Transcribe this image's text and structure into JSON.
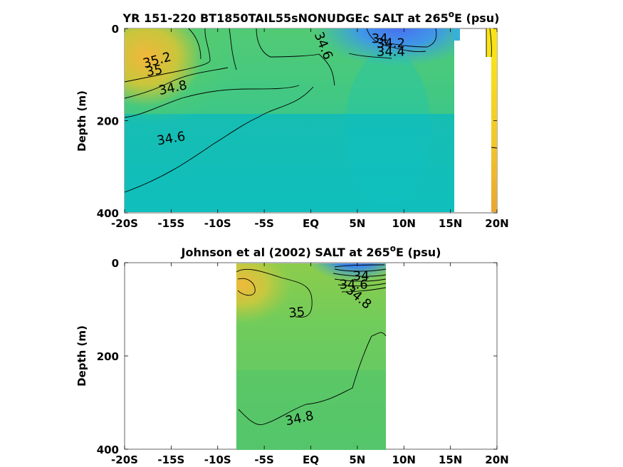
{
  "chart_data": [
    {
      "type": "heatmap",
      "title": "YR 151-220 BT1850TAIL55sNONUDGEc SALT at 265",
      "title_superscript": "o",
      "title_suffix": "E (psu)",
      "xlabel": "",
      "ylabel": "Depth (m)",
      "xlim": [
        -20,
        20
      ],
      "ylim": [
        400,
        0
      ],
      "x_ticks": [
        -20,
        -15,
        -10,
        -5,
        0,
        5,
        10,
        15,
        20
      ],
      "x_tick_labels": [
        "-20S",
        "-15S",
        "-10S",
        "-5S",
        "EQ",
        "5N",
        "10N",
        "15N",
        "20N"
      ],
      "y_ticks": [
        0,
        200,
        400
      ],
      "y_tick_labels": [
        "0",
        "200",
        "400"
      ],
      "data_extent_lat": [
        -20,
        15.8
      ],
      "contour_labels": [
        {
          "text": "35.2",
          "lat": -16.5,
          "depth": 70,
          "angle": -15
        },
        {
          "text": "35",
          "lat": -16.8,
          "depth": 93,
          "angle": -10
        },
        {
          "text": "34.8",
          "lat": -14.8,
          "depth": 130,
          "angle": -12
        },
        {
          "text": "34.6",
          "lat": -15,
          "depth": 240,
          "angle": -10
        },
        {
          "text": "34.6",
          "lat": 1.3,
          "depth": 38,
          "angle": 68
        },
        {
          "text": "34",
          "lat": 7.4,
          "depth": 23,
          "angle": 0
        },
        {
          "text": "34.2",
          "lat": 8.6,
          "depth": 33,
          "angle": 0
        },
        {
          "text": "34.4",
          "lat": 8.6,
          "depth": 52,
          "angle": 0
        }
      ]
    },
    {
      "type": "heatmap",
      "title": "Johnson et al (2002) SALT at 265",
      "title_superscript": "o",
      "title_suffix": "E (psu)",
      "xlabel": "",
      "ylabel": "Depth (m)",
      "xlim": [
        -20,
        20
      ],
      "ylim": [
        400,
        0
      ],
      "x_ticks": [
        -20,
        -15,
        -10,
        -5,
        0,
        5,
        10,
        15,
        20
      ],
      "x_tick_labels": [
        "-20S",
        "-15S",
        "-10S",
        "-5S",
        "EQ",
        "5N",
        "10N",
        "15N",
        "20N"
      ],
      "y_ticks": [
        0,
        200,
        400
      ],
      "y_tick_labels": [
        "0",
        "200",
        "400"
      ],
      "data_extent_lat": [
        -8,
        8
      ],
      "contour_labels": [
        {
          "text": "35",
          "lat": -1.5,
          "depth": 108,
          "angle": -5
        },
        {
          "text": "34",
          "lat": 5.4,
          "depth": 30,
          "angle": 0
        },
        {
          "text": "34.6",
          "lat": 4.6,
          "depth": 48,
          "angle": 0
        },
        {
          "text": "34.8",
          "lat": 5.1,
          "depth": 75,
          "angle": 40
        },
        {
          "text": "34.8",
          "lat": -1.2,
          "depth": 335,
          "angle": -12
        }
      ]
    }
  ]
}
